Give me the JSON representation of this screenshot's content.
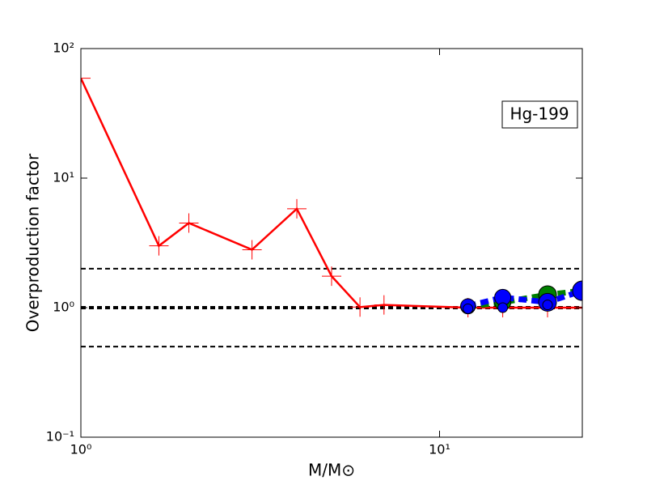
{
  "chart_data": {
    "type": "line",
    "xlabel": "M/M⊙",
    "ylabel": "Overproduction factor",
    "annotation": "Hg-199",
    "xlog": true,
    "ylog": true,
    "xlim": [
      1,
      25
    ],
    "ylim": [
      0.1,
      100
    ],
    "xticks": [
      {
        "value": 1,
        "label": "10⁰"
      },
      {
        "value": 10,
        "label": "10¹"
      }
    ],
    "yticks": [
      {
        "value": 0.1,
        "label": "10⁻¹"
      },
      {
        "value": 1,
        "label": "10⁰"
      },
      {
        "value": 10,
        "label": "10¹"
      },
      {
        "value": 100,
        "label": "10²"
      }
    ],
    "hlines": [
      2,
      1,
      0.5
    ],
    "series": [
      {
        "color": "#ff0000",
        "marker": "plus",
        "dashed": false,
        "x": [
          1,
          1.65,
          2,
          3,
          4,
          5,
          6,
          7,
          12,
          15,
          20,
          25
        ],
        "values": [
          59,
          3,
          4.5,
          2.8,
          5.8,
          1.75,
          1.01,
          1.05,
          1.0,
          1.0,
          1.0,
          1.0
        ]
      },
      {
        "color": "#008000",
        "marker": "circle",
        "dashed": true,
        "x": [
          12,
          15,
          20,
          25
        ],
        "values": [
          1.02,
          1.1,
          1.26,
          1.35
        ]
      },
      {
        "color": "#0000ff",
        "marker": "circle",
        "dashed": true,
        "x": [
          12,
          15,
          20,
          25
        ],
        "values": [
          1.03,
          1.2,
          1.1,
          1.35
        ]
      },
      {
        "color": "#0000ff",
        "marker": "small-circle",
        "dashed": false,
        "x": [
          12,
          15,
          20
        ],
        "values": [
          0.98,
          1.0,
          1.05
        ]
      }
    ]
  }
}
